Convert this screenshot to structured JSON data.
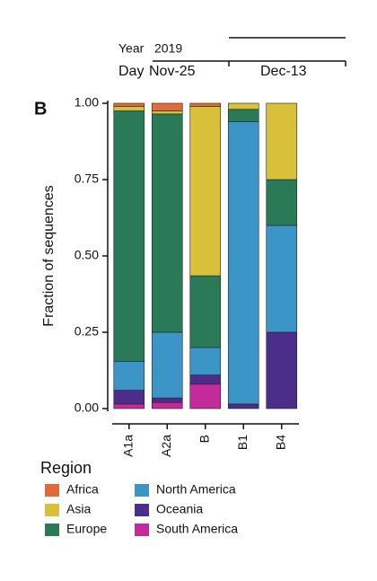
{
  "chart_data": {
    "type": "stacked_bar",
    "panel_label": "B",
    "timeline": {
      "year_label": "Year",
      "year": "2019",
      "day_label": "Day",
      "day_start": "Nov-25",
      "day_end": "Dec-13"
    },
    "ylabel": "Fraction of sequences",
    "categories": [
      "A1a",
      "A2a",
      "B",
      "B1",
      "B4"
    ],
    "legend_title": "Region",
    "series": [
      {
        "name": "Africa",
        "color": "#e06c3a",
        "values": [
          0.01,
          0.025,
          0.01,
          0,
          0
        ]
      },
      {
        "name": "Asia",
        "color": "#d8c03a",
        "values": [
          0.015,
          0.01,
          0.555,
          0.02,
          0.25
        ]
      },
      {
        "name": "Europe",
        "color": "#2a7a58",
        "values": [
          0.82,
          0.715,
          0.235,
          0.04,
          0.15
        ]
      },
      {
        "name": "North America",
        "color": "#3b95c6",
        "values": [
          0.095,
          0.215,
          0.09,
          0.925,
          0.35
        ]
      },
      {
        "name": "Oceania",
        "color": "#4a2e8a",
        "values": [
          0.045,
          0.015,
          0.03,
          0.015,
          0.25
        ]
      },
      {
        "name": "South America",
        "color": "#c42a9a",
        "values": [
          0.015,
          0.02,
          0.08,
          0,
          0
        ]
      }
    ],
    "ylim": [
      0,
      1
    ],
    "yticks": [
      {
        "value": 0,
        "label": "0.00"
      },
      {
        "value": 0.25,
        "label": "0.25"
      },
      {
        "value": 0.5,
        "label": "0.50"
      },
      {
        "value": 0.75,
        "label": "0.75"
      },
      {
        "value": 1,
        "label": "1.00"
      }
    ]
  }
}
